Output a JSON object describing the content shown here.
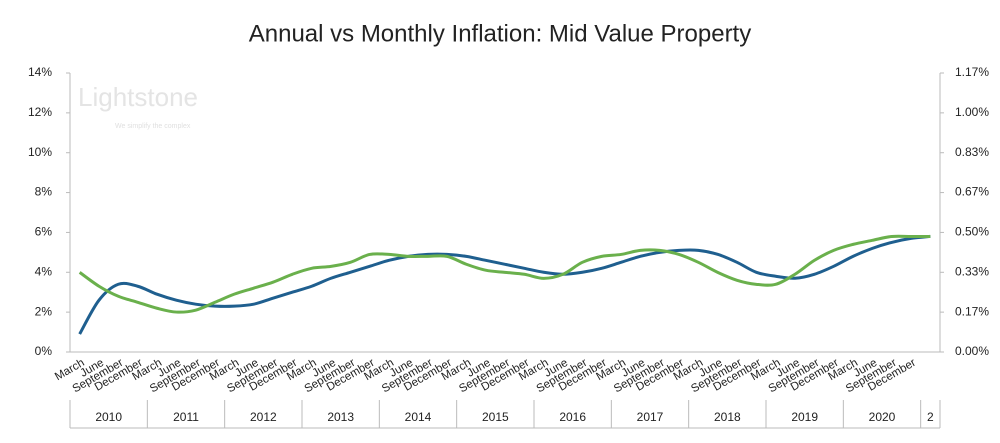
{
  "chart_data": {
    "type": "line",
    "title": "Annual vs Monthly Inflation: Mid Value Property",
    "watermark": {
      "name": "Lightstone",
      "tagline": "We simplify the complex"
    },
    "categories": [
      "March",
      "June",
      "September",
      "December",
      "March",
      "June",
      "September",
      "December",
      "March",
      "June",
      "September",
      "December",
      "March",
      "June",
      "September",
      "December",
      "March",
      "June",
      "September",
      "December",
      "March",
      "June",
      "September",
      "December",
      "March",
      "June",
      "September",
      "December",
      "March",
      "June",
      "September",
      "December",
      "March",
      "June",
      "September",
      "December",
      "March",
      "June",
      "September",
      "December",
      "March",
      "June",
      "September",
      "December",
      null
    ],
    "year_groups": [
      {
        "label": "2010",
        "span": 4
      },
      {
        "label": "2011",
        "span": 4
      },
      {
        "label": "2012",
        "span": 4
      },
      {
        "label": "2013",
        "span": 4
      },
      {
        "label": "2014",
        "span": 4
      },
      {
        "label": "2015",
        "span": 4
      },
      {
        "label": "2016",
        "span": 4
      },
      {
        "label": "2017",
        "span": 4
      },
      {
        "label": "2018",
        "span": 4
      },
      {
        "label": "2019",
        "span": 4
      },
      {
        "label": "2020",
        "span": 4
      },
      {
        "label": "2",
        "span": 1
      }
    ],
    "series": [
      {
        "color": "#1f5f8f",
        "axis": "y",
        "values": [
          0.9,
          2.6,
          3.4,
          3.3,
          2.9,
          2.6,
          2.4,
          2.3,
          2.3,
          2.4,
          2.7,
          3.0,
          3.3,
          3.7,
          4.0,
          4.3,
          4.6,
          4.8,
          4.9,
          4.9,
          4.8,
          4.6,
          4.4,
          4.2,
          4.0,
          3.9,
          4.0,
          4.2,
          4.5,
          4.8,
          5.0,
          5.1,
          5.1,
          4.9,
          4.5,
          4.0,
          3.8,
          3.7,
          3.9,
          4.3,
          4.8,
          5.2,
          5.5,
          5.7,
          5.8
        ]
      },
      {
        "color": "#6ab04c",
        "axis": "y2",
        "values": [
          0.333,
          0.275,
          0.233,
          0.208,
          0.183,
          0.167,
          0.175,
          0.208,
          0.242,
          0.267,
          0.292,
          0.325,
          0.35,
          0.358,
          0.375,
          0.408,
          0.408,
          0.4,
          0.4,
          0.4,
          0.367,
          0.342,
          0.333,
          0.325,
          0.308,
          0.325,
          0.375,
          0.4,
          0.408,
          0.425,
          0.425,
          0.408,
          0.375,
          0.333,
          0.3,
          0.283,
          0.283,
          0.325,
          0.383,
          0.425,
          0.45,
          0.467,
          0.483,
          0.483,
          0.483
        ]
      }
    ],
    "ylim": [
      0,
      14
    ],
    "yticks": [
      {
        "value": 0,
        "label": "0%"
      },
      {
        "value": 2,
        "label": "2%"
      },
      {
        "value": 4,
        "label": "4%"
      },
      {
        "value": 6,
        "label": "6%"
      },
      {
        "value": 8,
        "label": "8%"
      },
      {
        "value": 10,
        "label": "10%"
      },
      {
        "value": 12,
        "label": "12%"
      },
      {
        "value": 14,
        "label": "14%"
      }
    ],
    "y2lim": [
      0,
      1.1667
    ],
    "y2ticks": [
      {
        "value": 0,
        "label": "0.00%"
      },
      {
        "value": 0.1667,
        "label": "0.17%"
      },
      {
        "value": 0.3333,
        "label": "0.33%"
      },
      {
        "value": 0.5,
        "label": "0.50%"
      },
      {
        "value": 0.6667,
        "label": "0.67%"
      },
      {
        "value": 0.8333,
        "label": "0.83%"
      },
      {
        "value": 1,
        "label": "1.00%"
      },
      {
        "value": 1.1667,
        "label": "1.17%"
      }
    ],
    "grid": false
  }
}
